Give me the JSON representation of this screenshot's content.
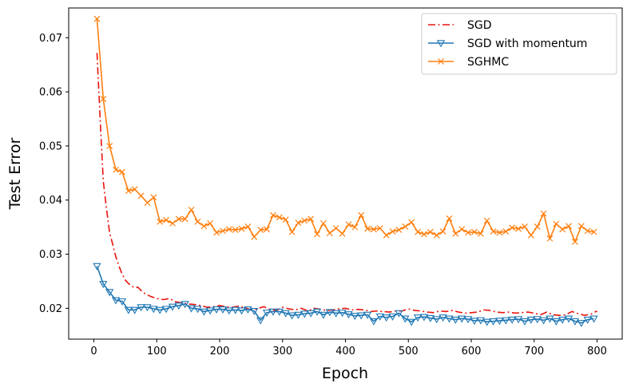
{
  "chart_data": {
    "type": "line",
    "xlabel": "Epoch",
    "ylabel": "Test Error",
    "xlim": [
      -40,
      840
    ],
    "ylim": [
      0.0143,
      0.0755
    ],
    "xticks": [
      0,
      100,
      200,
      300,
      400,
      500,
      600,
      700,
      800
    ],
    "yticks": [
      0.02,
      0.03,
      0.04,
      0.05,
      0.06,
      0.07
    ],
    "ytick_labels": [
      "0.02",
      "0.03",
      "0.04",
      "0.05",
      "0.06",
      "0.07"
    ],
    "grid": false,
    "legend_position": "top-right",
    "series": [
      {
        "name": "SGD",
        "color": "#e8140f",
        "style": "dashdot",
        "marker": "none",
        "x": [
          5,
          10,
          15,
          20,
          25,
          30,
          35,
          40,
          45,
          50,
          55,
          60,
          65,
          70,
          75,
          80,
          90,
          100,
          110,
          120,
          130,
          140,
          150,
          160,
          170,
          180,
          190,
          200,
          210,
          220,
          230,
          240,
          250,
          260,
          270,
          280,
          290,
          300,
          310,
          320,
          330,
          340,
          350,
          360,
          370,
          380,
          390,
          400,
          410,
          420,
          430,
          440,
          450,
          460,
          470,
          480,
          490,
          500,
          510,
          520,
          530,
          540,
          550,
          560,
          570,
          580,
          590,
          600,
          610,
          620,
          630,
          640,
          650,
          660,
          670,
          680,
          690,
          700,
          710,
          720,
          730,
          740,
          750,
          760,
          770,
          780,
          790,
          800
        ],
        "y": [
          0.0672,
          0.055,
          0.0435,
          0.0385,
          0.034,
          0.0318,
          0.0295,
          0.0278,
          0.0263,
          0.0252,
          0.0246,
          0.0241,
          0.0238,
          0.0239,
          0.0233,
          0.0228,
          0.0222,
          0.0218,
          0.0216,
          0.0218,
          0.0212,
          0.021,
          0.0208,
          0.0207,
          0.0205,
          0.0202,
          0.0203,
          0.0205,
          0.0203,
          0.0202,
          0.0204,
          0.0201,
          0.0197,
          0.0199,
          0.0203,
          0.0198,
          0.0196,
          0.0202,
          0.0199,
          0.0197,
          0.02,
          0.0195,
          0.02,
          0.0198,
          0.0196,
          0.0197,
          0.0199,
          0.02,
          0.0197,
          0.0198,
          0.0197,
          0.0194,
          0.0195,
          0.0194,
          0.0193,
          0.0195,
          0.0195,
          0.0199,
          0.0196,
          0.0195,
          0.0193,
          0.0192,
          0.0195,
          0.0194,
          0.0196,
          0.0193,
          0.0191,
          0.0192,
          0.0193,
          0.0197,
          0.0196,
          0.0193,
          0.0192,
          0.0193,
          0.0191,
          0.0192,
          0.0193,
          0.0191,
          0.0188,
          0.0193,
          0.0188,
          0.0187,
          0.0188,
          0.0194,
          0.019,
          0.0187,
          0.0189,
          0.0195
        ]
      },
      {
        "name": "SGD with momentum",
        "color": "#1f77b4",
        "style": "solid",
        "marker": "triangle-down",
        "x": [
          5,
          15,
          25,
          35,
          45,
          55,
          65,
          75,
          85,
          95,
          105,
          115,
          125,
          135,
          145,
          155,
          165,
          175,
          185,
          195,
          205,
          215,
          225,
          235,
          245,
          255,
          265,
          275,
          285,
          295,
          305,
          315,
          325,
          335,
          345,
          355,
          365,
          375,
          385,
          395,
          405,
          415,
          425,
          435,
          445,
          455,
          465,
          475,
          485,
          495,
          505,
          515,
          525,
          535,
          545,
          555,
          565,
          575,
          585,
          595,
          605,
          615,
          625,
          635,
          645,
          655,
          665,
          675,
          685,
          695,
          705,
          715,
          725,
          735,
          745,
          755,
          765,
          775,
          785,
          795
        ],
        "y": [
          0.0278,
          0.0245,
          0.023,
          0.0215,
          0.0213,
          0.0197,
          0.0197,
          0.0202,
          0.0202,
          0.0199,
          0.0197,
          0.0199,
          0.0203,
          0.0205,
          0.0208,
          0.02,
          0.0199,
          0.0194,
          0.0196,
          0.0198,
          0.0198,
          0.0196,
          0.0197,
          0.0196,
          0.0198,
          0.0195,
          0.0178,
          0.0192,
          0.0194,
          0.0194,
          0.0191,
          0.0187,
          0.0188,
          0.019,
          0.0191,
          0.0194,
          0.0188,
          0.0193,
          0.0191,
          0.0192,
          0.0189,
          0.0186,
          0.0187,
          0.0188,
          0.0176,
          0.0185,
          0.0183,
          0.0185,
          0.0191,
          0.0181,
          0.0175,
          0.0183,
          0.0184,
          0.0182,
          0.018,
          0.0183,
          0.0181,
          0.0179,
          0.0181,
          0.018,
          0.0177,
          0.0178,
          0.0175,
          0.0176,
          0.0177,
          0.0178,
          0.0179,
          0.018,
          0.0176,
          0.0179,
          0.018,
          0.0178,
          0.0181,
          0.0176,
          0.0179,
          0.0181,
          0.0176,
          0.0173,
          0.0179,
          0.0181
        ]
      },
      {
        "name": "SGHMC",
        "color": "#ff7f0e",
        "style": "solid",
        "marker": "x",
        "x": [
          5,
          15,
          25,
          35,
          45,
          55,
          65,
          75,
          85,
          95,
          105,
          115,
          125,
          135,
          145,
          155,
          165,
          175,
          185,
          195,
          205,
          215,
          225,
          235,
          245,
          255,
          265,
          275,
          285,
          295,
          305,
          315,
          325,
          335,
          345,
          355,
          365,
          375,
          385,
          395,
          405,
          415,
          425,
          435,
          445,
          455,
          465,
          475,
          485,
          495,
          505,
          515,
          525,
          535,
          545,
          555,
          565,
          575,
          585,
          595,
          605,
          615,
          625,
          635,
          645,
          655,
          665,
          675,
          685,
          695,
          705,
          715,
          725,
          735,
          745,
          755,
          765,
          775,
          785,
          795
        ],
        "y": [
          0.0735,
          0.0587,
          0.05,
          0.0456,
          0.0452,
          0.0417,
          0.042,
          0.0408,
          0.0395,
          0.0405,
          0.036,
          0.0363,
          0.0357,
          0.0365,
          0.0365,
          0.0382,
          0.036,
          0.0352,
          0.0357,
          0.034,
          0.0343,
          0.0346,
          0.0345,
          0.0347,
          0.0351,
          0.0332,
          0.0345,
          0.0346,
          0.0372,
          0.0368,
          0.0364,
          0.0341,
          0.0358,
          0.0362,
          0.0365,
          0.0337,
          0.0357,
          0.0339,
          0.0348,
          0.0338,
          0.0355,
          0.035,
          0.0372,
          0.0347,
          0.0346,
          0.0348,
          0.0335,
          0.0342,
          0.0345,
          0.0351,
          0.0359,
          0.0341,
          0.0337,
          0.0341,
          0.0335,
          0.0342,
          0.0366,
          0.0338,
          0.0346,
          0.034,
          0.0341,
          0.0338,
          0.0362,
          0.0342,
          0.034,
          0.0342,
          0.0349,
          0.0347,
          0.0351,
          0.0335,
          0.0351,
          0.0375,
          0.0329,
          0.0356,
          0.0346,
          0.0352,
          0.0323,
          0.0352,
          0.0343,
          0.0341
        ]
      }
    ]
  }
}
